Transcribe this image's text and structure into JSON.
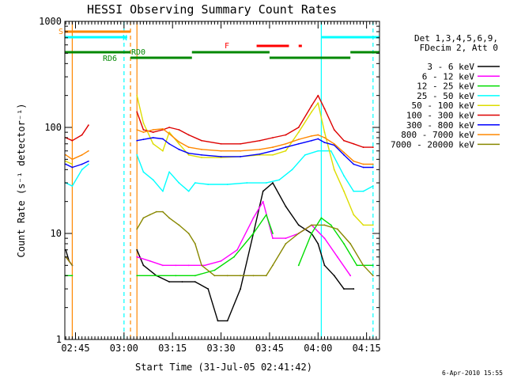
{
  "chart_data": {
    "type": "line",
    "title": "HESSI Observing Summary Count Rates",
    "xlabel": "Start Time (31-Jul-05 02:41:42)",
    "ylabel": "Count Rate (s⁻¹ detector⁻¹)",
    "yscale": "log",
    "ylim": [
      1,
      1000
    ],
    "xlim": [
      "02:41:42",
      "04:19:00"
    ],
    "x_ticks": [
      "02:45",
      "03:00",
      "03:15",
      "03:30",
      "03:45",
      "04:00",
      "04:15"
    ],
    "y_ticks": [
      "1",
      "10",
      "100",
      "1000"
    ],
    "footer_date": "6-Apr-2010 15:55",
    "legend": {
      "position": "right",
      "header": [
        "Det 1,3,4,5,6,9,",
        "FDecim 2, Att 0"
      ],
      "entries": [
        {
          "label": "3 - 6 keV",
          "color": "#000000"
        },
        {
          "label": "6 - 12 keV",
          "color": "#ff00ff"
        },
        {
          "label": "12 - 25 keV",
          "color": "#00dd00"
        },
        {
          "label": "25 - 50 keV",
          "color": "#00ffff"
        },
        {
          "label": "50 - 100 keV",
          "color": "#dddd00"
        },
        {
          "label": "100 - 300 keV",
          "color": "#dd0000"
        },
        {
          "label": "300 - 800 keV",
          "color": "#0000ff"
        },
        {
          "label": "800 - 7000 keV",
          "color": "#ff8800"
        },
        {
          "label": "7000 - 20000 keV",
          "color": "#888800"
        }
      ]
    },
    "flags": [
      {
        "label": "S",
        "color": "#ff8800",
        "segments": [
          [
            "02:41:42",
            "03:02"
          ]
        ]
      },
      {
        "label": "N",
        "color": "#00ffff",
        "segments": [
          [
            "02:41:42",
            "03:01"
          ],
          [
            "04:01",
            "04:19"
          ]
        ]
      },
      {
        "label": "F",
        "color": "#ff0000",
        "segments": [
          [
            "03:41",
            "03:51"
          ],
          [
            "03:54",
            "03:55"
          ]
        ]
      },
      {
        "label": "RD0",
        "color": "#008800",
        "segments": [
          [
            "02:41:42",
            "03:02"
          ],
          [
            "03:21",
            "03:45"
          ],
          [
            "04:10",
            "04:19"
          ]
        ]
      },
      {
        "label": "RD6",
        "color": "#008800",
        "segments": [
          [
            "03:02",
            "03:21"
          ],
          [
            "03:45",
            "04:10"
          ]
        ]
      }
    ],
    "vertical_markers": [
      {
        "x": "02:44",
        "color": "#ff8800",
        "style": "solid"
      },
      {
        "x": "03:00",
        "color": "#00ffff",
        "style": "dashed"
      },
      {
        "x": "03:02",
        "color": "#ff8800",
        "style": "dashed"
      },
      {
        "x": "03:04",
        "color": "#ff8800",
        "style": "solid"
      },
      {
        "x": "04:01",
        "color": "#00ffff",
        "style": "solid"
      },
      {
        "x": "04:17",
        "color": "#00ffff",
        "style": "dashed"
      }
    ],
    "series": [
      {
        "name": "3 - 6 keV",
        "color": "#000000",
        "segments": [
          {
            "x": [
              "02:42",
              "02:43",
              "02:44"
            ],
            "y": [
              7,
              5.5,
              5
            ]
          },
          {
            "x": [
              "03:04",
              "03:06",
              "03:10",
              "03:14",
              "03:18",
              "03:22",
              "03:26",
              "03:29",
              "03:32",
              "03:36",
              "03:40",
              "03:43",
              "03:46",
              "03:50",
              "03:54",
              "03:58",
              "04:00",
              "04:02",
              "04:05",
              "04:08",
              "04:11"
            ],
            "y": [
              7,
              5,
              4,
              3.5,
              3.5,
              3.5,
              3,
              1.5,
              1.5,
              3,
              10,
              25,
              30,
              18,
              12,
              10,
              8,
              5,
              4,
              3,
              3
            ]
          }
        ]
      },
      {
        "name": "6 - 12 keV",
        "color": "#ff00ff",
        "segments": [
          {
            "x": [
              "02:42",
              "02:44"
            ],
            "y": [
              6,
              5
            ]
          },
          {
            "x": [
              "03:04",
              "03:08",
              "03:12",
              "03:16",
              "03:20",
              "03:25",
              "03:30",
              "03:35",
              "03:40",
              "03:43",
              "03:46",
              "03:50",
              "03:54",
              "03:58",
              "04:02",
              "04:06",
              "04:10"
            ],
            "y": [
              6,
              5.5,
              5,
              5,
              5,
              5,
              5.5,
              7,
              14,
              20,
              9,
              9,
              10,
              12,
              9,
              6,
              4
            ]
          }
        ]
      },
      {
        "name": "12 - 25 keV",
        "color": "#00dd00",
        "segments": [
          {
            "x": [
              "02:42",
              "02:44"
            ],
            "y": [
              4,
              4
            ]
          },
          {
            "x": [
              "03:04",
              "03:10",
              "03:16",
              "03:22",
              "03:28",
              "03:34",
              "03:40",
              "03:44",
              "03:46"
            ],
            "y": [
              4,
              4,
              4,
              4,
              4.5,
              6,
              10,
              15,
              10
            ]
          },
          {
            "x": [
              "03:54",
              "03:58",
              "04:01",
              "04:04",
              "04:08",
              "04:12",
              "04:17"
            ],
            "y": [
              5,
              10,
              14,
              12,
              8,
              5,
              5
            ]
          }
        ]
      },
      {
        "name": "25 - 50 keV",
        "color": "#00ffff",
        "segments": [
          {
            "x": [
              "02:42",
              "02:44",
              "02:47",
              "02:49"
            ],
            "y": [
              30,
              28,
              40,
              45
            ]
          },
          {
            "x": [
              "03:04",
              "03:06",
              "03:09",
              "03:12",
              "03:14",
              "03:17",
              "03:20",
              "03:22",
              "03:26",
              "03:32",
              "03:38",
              "03:44",
              "03:48",
              "03:52",
              "03:56",
              "04:00",
              "04:04",
              "04:08",
              "04:11",
              "04:14",
              "04:17"
            ],
            "y": [
              55,
              38,
              32,
              25,
              38,
              30,
              25,
              30,
              29,
              29,
              30,
              30,
              32,
              40,
              55,
              60,
              60,
              35,
              25,
              25,
              28
            ]
          }
        ]
      },
      {
        "name": "50 - 100 keV",
        "color": "#dddd00",
        "segments": [
          {
            "x": [
              "02:42",
              "02:44"
            ],
            "y": [
              48,
              45
            ]
          },
          {
            "x": [
              "03:04",
              "03:06",
              "03:09",
              "03:12",
              "03:14",
              "03:17",
              "03:20",
              "03:24",
              "03:30",
              "03:36",
              "03:42",
              "03:46",
              "03:50",
              "03:54",
              "03:58",
              "04:00",
              "04:02",
              "04:05",
              "04:08",
              "04:11",
              "04:14",
              "04:17"
            ],
            "y": [
              200,
              110,
              70,
              60,
              90,
              70,
              55,
              52,
              52,
              53,
              55,
              55,
              60,
              90,
              140,
              170,
              90,
              40,
              25,
              15,
              12,
              12
            ]
          }
        ]
      },
      {
        "name": "100 - 300 keV",
        "color": "#dd0000",
        "segments": [
          {
            "x": [
              "02:42",
              "02:44",
              "02:47",
              "02:49"
            ],
            "y": [
              80,
              75,
              85,
              105
            ]
          },
          {
            "x": [
              "03:04",
              "03:06",
              "03:09",
              "03:12",
              "03:14",
              "03:17",
              "03:20",
              "03:24",
              "03:30",
              "03:36",
              "03:42",
              "03:46",
              "03:50",
              "03:54",
              "03:58",
              "04:00",
              "04:02",
              "04:05",
              "04:08",
              "04:11",
              "04:14",
              "04:17"
            ],
            "y": [
              140,
              95,
              90,
              95,
              100,
              95,
              85,
              75,
              70,
              70,
              75,
              80,
              85,
              100,
              160,
              200,
              150,
              95,
              75,
              70,
              65,
              65
            ]
          }
        ]
      },
      {
        "name": "300 - 800 keV",
        "color": "#0000ff",
        "segments": [
          {
            "x": [
              "02:42",
              "02:44",
              "02:47",
              "02:49"
            ],
            "y": [
              45,
              42,
              45,
              48
            ]
          },
          {
            "x": [
              "03:04",
              "03:06",
              "03:09",
              "03:12",
              "03:14",
              "03:17",
              "03:20",
              "03:24",
              "03:30",
              "03:36",
              "03:42",
              "03:46",
              "03:50",
              "03:54",
              "03:58",
              "04:00",
              "04:02",
              "04:05",
              "04:08",
              "04:11",
              "04:14",
              "04:17"
            ],
            "y": [
              75,
              77,
              80,
              78,
              70,
              62,
              57,
              55,
              53,
              53,
              56,
              60,
              65,
              70,
              75,
              78,
              72,
              68,
              55,
              45,
              42,
              42
            ]
          }
        ]
      },
      {
        "name": "800 - 7000 keV",
        "color": "#ff8800",
        "segments": [
          {
            "x": [
              "02:42",
              "02:44",
              "02:47",
              "02:49"
            ],
            "y": [
              55,
              50,
              55,
              60
            ]
          },
          {
            "x": [
              "03:04",
              "03:06",
              "03:09",
              "03:12",
              "03:14",
              "03:17",
              "03:20",
              "03:24",
              "03:30",
              "03:36",
              "03:42",
              "03:46",
              "03:50",
              "03:54",
              "03:58",
              "04:00",
              "04:02",
              "04:05",
              "04:08",
              "04:11",
              "04:14",
              "04:17"
            ],
            "y": [
              95,
              90,
              95,
              97,
              87,
              73,
              65,
              62,
              60,
              60,
              62,
              65,
              70,
              77,
              83,
              85,
              80,
              70,
              58,
              48,
              45,
              45
            ]
          }
        ]
      },
      {
        "name": "7000 - 20000 keV",
        "color": "#888800",
        "segments": [
          {
            "x": [
              "02:42",
              "02:44"
            ],
            "y": [
              6,
              5
            ]
          },
          {
            "x": [
              "03:04",
              "03:06",
              "03:08",
              "03:10",
              "03:12",
              "03:14",
              "03:17",
              "03:20",
              "03:22",
              "03:24",
              "03:28",
              "03:32",
              "03:36",
              "03:40",
              "03:44",
              "03:46",
              "03:50",
              "03:54",
              "03:58",
              "04:02",
              "04:06",
              "04:10",
              "04:14",
              "04:17"
            ],
            "y": [
              11,
              14,
              15,
              16,
              16,
              14,
              12,
              10,
              8,
              5,
              4,
              4,
              4,
              4,
              4,
              5,
              8,
              10,
              12,
              12,
              11,
              8,
              5,
              4
            ]
          }
        ]
      }
    ]
  }
}
